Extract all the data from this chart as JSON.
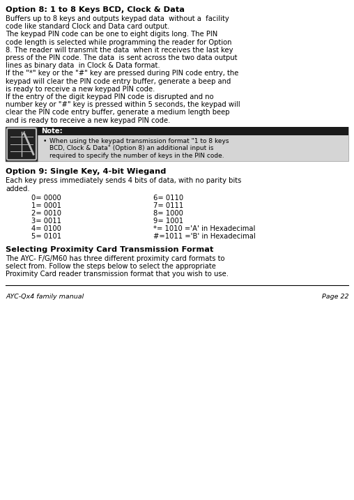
{
  "bg_color": "#ffffff",
  "title1": "Option 8: 1 to 8 Keys BCD, Clock & Data",
  "body1": [
    "Buffers up to 8 keys and outputs keypad data  without a  facility",
    "code like standard Clock and Data card output.",
    "The keypad PIN code can be one to eight digits long. The PIN",
    "code length is selected while programming the reader for Option",
    "8. The reader will transmit the data  when it receives the last key",
    "press of the PIN code. The data  is sent across the two data output",
    "lines as binary data  in Clock & Data format.",
    "If the \"*\" key or the \"#\" key are pressed during PIN code entry, the",
    "keypad will clear the PIN code entry buffer, generate a beep and",
    "is ready to receive a new keypad PIN code.",
    "If the entry of the digit keypad PIN code is disrupted and no",
    "number key or \"#\" key is pressed within 5 seconds, the keypad will",
    "clear the PIN code entry buffer, generate a medium length beep",
    "and is ready to receive a new keypad PIN code."
  ],
  "note_label": "Note:",
  "note_lines": [
    "When using the keypad transmission format \"1 to 8 keys",
    "BCD, Clock & Data\" (Option 8) an additional input is",
    "required to specify the number of keys in the PIN code."
  ],
  "title2": "Option 9: Single Key, 4-bit Wiegand",
  "body2a": "Each key press immediately sends 4 bits of data, with no parity bits",
  "body2b": "added.",
  "table_left": [
    "0= 0000",
    "1= 0001",
    "2= 0010",
    "3= 0011",
    "4= 0100",
    "5= 0101"
  ],
  "table_right": [
    "6= 0110",
    "7= 0111",
    "8= 1000",
    "9= 1001",
    "*= 1010 ='A' in Hexadecimal",
    "#=1011 ='B' in Hexadecimal"
  ],
  "title3": "Selecting Proximity Card Transmission Format",
  "body3": [
    "The AYC- F/G/M60 has three different proximity card formats to",
    "select from. Follow the steps below to select the appropriate",
    "Proximity Card reader transmission format that you wish to use."
  ],
  "footer_left": "AYC-Qx4 family manual",
  "footer_right": "Page 22"
}
